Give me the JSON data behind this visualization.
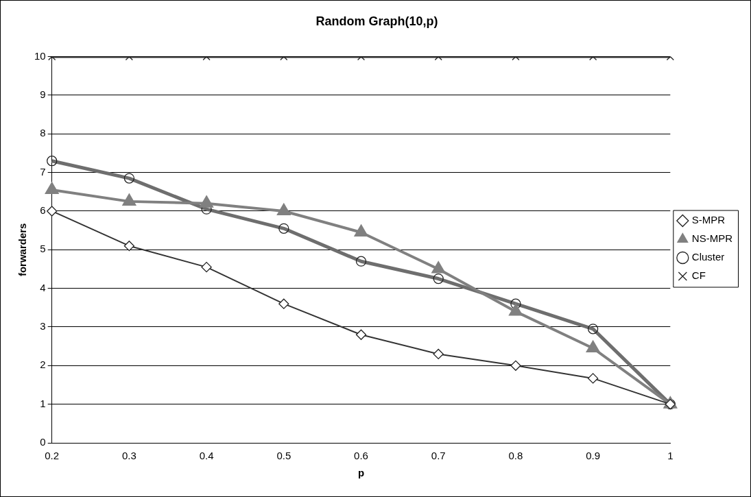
{
  "chart_data": {
    "type": "line",
    "title": "Random Graph(10,p)",
    "xlabel": "p",
    "ylabel": "forwarders",
    "categories": [
      "0.2",
      "0.3",
      "0.4",
      "0.5",
      "0.6",
      "0.7",
      "0.8",
      "0.9",
      "1"
    ],
    "series": [
      {
        "name": "S-MPR",
        "color": "#333333",
        "marker": "diamond",
        "values": [
          6.0,
          5.1,
          4.55,
          3.6,
          2.8,
          2.3,
          2.0,
          1.67,
          1.0
        ]
      },
      {
        "name": "NS-MPR",
        "color": "#808080",
        "marker": "triangle",
        "values": [
          6.55,
          6.25,
          6.2,
          6.0,
          5.45,
          4.5,
          3.4,
          2.45,
          1.0
        ]
      },
      {
        "name": "Cluster",
        "color": "#6e6e6e",
        "marker": "circle",
        "values": [
          7.3,
          6.85,
          6.05,
          5.55,
          4.7,
          4.25,
          3.6,
          2.95,
          1.0
        ]
      },
      {
        "name": "CF",
        "color": "#333333",
        "marker": "cross",
        "values": [
          10,
          10,
          10,
          10,
          10,
          10,
          10,
          10,
          10
        ]
      }
    ],
    "ylim": [
      0,
      10
    ],
    "yticks": [
      0,
      1,
      2,
      3,
      4,
      5,
      6,
      7,
      8,
      9,
      10
    ],
    "grid": "y",
    "legend": "right",
    "line_style": "solid"
  }
}
